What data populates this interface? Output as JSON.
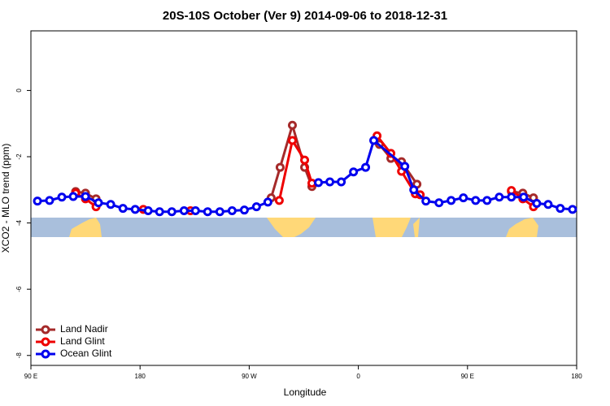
{
  "chart_data": {
    "type": "line",
    "title": "20S-10S October (Ver 9)   2014-09-06 to 2018-12-31",
    "x_label": "Longitude",
    "y_label": "XCO2 - MLO trend (ppm)",
    "xlim": [
      90,
      540
    ],
    "xticks": [
      {
        "value": 90,
        "label": "90 E"
      },
      {
        "value": 180,
        "label": "180"
      },
      {
        "value": 270,
        "label": "90 W"
      },
      {
        "value": 360,
        "label": "0"
      },
      {
        "value": 450,
        "label": "90 E"
      },
      {
        "value": 540,
        "label": "180"
      }
    ],
    "ylim": [
      -8.3,
      1.8
    ],
    "yticks": [
      0,
      -2,
      -4,
      -6,
      -8
    ],
    "legend": "bottom-left",
    "series": [
      {
        "name": "Land Nadir",
        "color": "#a52a2a",
        "x": [
          126.9,
          135,
          143.7,
          null,
          288.1,
          295.5,
          305.6,
          315.7,
          321.7,
          null,
          377.4,
          386.8,
          395.6,
          408.3,
          null,
          486.2,
          495.6,
          504.4
        ],
        "values": [
          -3.05,
          -3.1,
          -3.27,
          null,
          -3.24,
          -2.32,
          -1.05,
          -2.32,
          -2.9,
          null,
          -1.63,
          -2.05,
          -2.15,
          -2.83,
          null,
          -3.05,
          -3.1,
          -3.24
        ]
      },
      {
        "name": "Land Glint",
        "color": "#ee0000",
        "x": [
          126.9,
          135,
          143.7,
          null,
          182.7,
          null,
          221.6,
          null,
          294.8,
          305.6,
          315.7,
          321.7,
          null,
          375.4,
          386.8,
          395.6,
          407,
          411,
          null,
          486.2,
          495.6,
          504.4
        ],
        "values": [
          -3.1,
          -3.27,
          -3.51,
          null,
          -3.59,
          null,
          -3.63,
          null,
          -3.32,
          -1.51,
          -2.1,
          -2.8,
          null,
          -1.37,
          -1.9,
          -2.44,
          -3.12,
          -3.15,
          null,
          -3.02,
          -3.27,
          -3.51
        ]
      },
      {
        "name": "Ocean Glint",
        "color": "#0000ee",
        "x": [
          95.4,
          105.4,
          115.5,
          124.9,
          135,
          145.7,
          155.8,
          165.9,
          176,
          186.7,
          196.1,
          206.2,
          216.3,
          225.7,
          235.7,
          245.8,
          255.9,
          266,
          276,
          285.4,
          null,
          327.1,
          336.5,
          345.9,
          356,
          366,
          372.7,
          398.3,
          405.7,
          415.7,
          426.5,
          436.5,
          446.6,
          456.7,
          466.1,
          476.2,
          486.2,
          496.3,
          507.1,
          516.5,
          526.5,
          536.6
        ],
        "values": [
          -3.34,
          -3.32,
          -3.22,
          -3.2,
          -3.2,
          -3.39,
          -3.44,
          -3.56,
          -3.59,
          -3.63,
          -3.66,
          -3.66,
          -3.63,
          -3.63,
          -3.66,
          -3.66,
          -3.63,
          -3.61,
          -3.51,
          -3.37,
          null,
          -2.78,
          -2.76,
          -2.76,
          -2.46,
          -2.32,
          -1.51,
          -2.29,
          -3.0,
          -3.34,
          -3.39,
          -3.32,
          -3.24,
          -3.32,
          -3.32,
          -3.22,
          -3.22,
          -3.22,
          -3.41,
          -3.44,
          -3.56,
          -3.59
        ]
      }
    ]
  }
}
